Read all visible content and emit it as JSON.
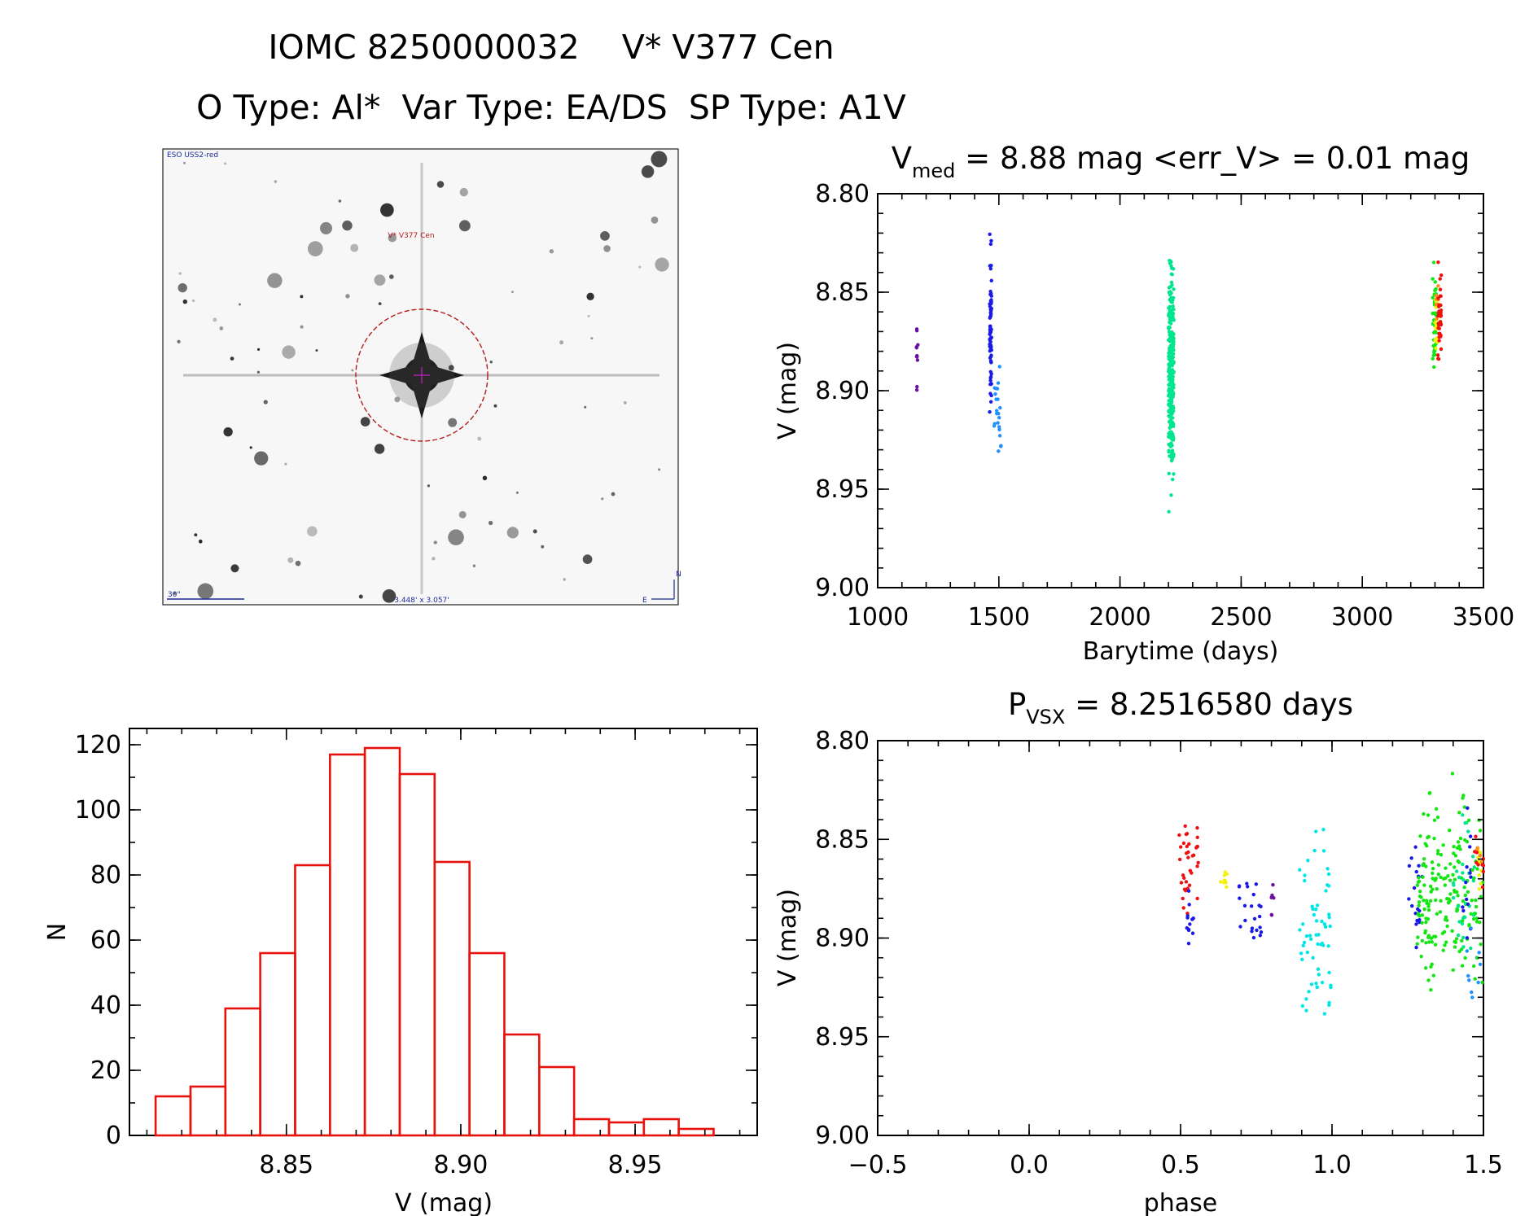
{
  "header": {
    "title": "IOMC 8250000032    V* V377 Cen",
    "subtitle": "O Type: Al*  Var Type: EA/DS  SP Type: A1V"
  },
  "finder_chart": {
    "survey_label": "ESO USS2-red",
    "target_label": "V* V377 Cen",
    "scale_label": "30\"",
    "fov_label": "3.448' x 3.057'",
    "compass_n": "N",
    "compass_e": "E"
  },
  "colors": {
    "histogram": "#e8120c",
    "purple": "#6a0fa0",
    "blue": "#1a1ae6",
    "azure": "#1e90ff",
    "green": "#14e614",
    "seagreen": "#00e68c",
    "cyan": "#00e6e6",
    "yellow": "#f2f20a",
    "orange": "#ff8c1a",
    "red": "#f01010"
  },
  "chart_data": [
    {
      "id": "histogram",
      "type": "bar",
      "xlabel": "V (mag)",
      "ylabel": "N",
      "xlim": [
        8.805,
        8.985
      ],
      "ylim": [
        0,
        125
      ],
      "xticks": [
        8.85,
        8.9,
        8.95
      ],
      "yticks": [
        0,
        20,
        40,
        60,
        80,
        100,
        120
      ],
      "bin_edges": [
        8.8125,
        8.8225,
        8.8325,
        8.8425,
        8.8525,
        8.8625,
        8.8725,
        8.8825,
        8.8925,
        8.9025,
        8.9125,
        8.9225,
        8.9325,
        8.9425,
        8.9525,
        8.9625,
        8.9725
      ],
      "values": [
        12,
        15,
        39,
        56,
        83,
        117,
        119,
        111,
        84,
        56,
        31,
        21,
        5,
        4,
        5,
        2
      ]
    },
    {
      "id": "light-curve",
      "type": "scatter",
      "title_main": "V",
      "title_sub": "med",
      "title_rest": " = 8.88 mag <err_V> = 0.01 mag",
      "xlabel": "Barytime (days)",
      "ylabel": "V (mag)",
      "xlim": [
        1000,
        3500
      ],
      "ylim": [
        8.8,
        9.0
      ],
      "y_inverted": true,
      "xticks": [
        1000,
        1500,
        2000,
        2500,
        3000,
        3500
      ],
      "yticks": [
        8.8,
        8.85,
        8.9,
        8.95,
        9.0
      ],
      "groups": [
        {
          "color": "purple",
          "xmin": 1160,
          "xmax": 1166,
          "ymin": 8.857,
          "ymax": 8.907,
          "n": 11
        },
        {
          "color": "blue",
          "xmin": 1462,
          "xmax": 1470,
          "ymin": 8.815,
          "ymax": 8.925,
          "n": 70
        },
        {
          "color": "azure",
          "xmin": 1480,
          "xmax": 1510,
          "ymin": 8.875,
          "ymax": 8.942,
          "n": 22
        },
        {
          "color": "seagreen",
          "xmin": 2200,
          "xmax": 2222,
          "ymin": 8.815,
          "ymax": 8.965,
          "n": 300
        },
        {
          "color": "green",
          "xmin": 3290,
          "xmax": 3305,
          "ymin": 8.825,
          "ymax": 8.905,
          "n": 40
        },
        {
          "color": "yellow",
          "xmin": 3300,
          "xmax": 3312,
          "ymin": 8.84,
          "ymax": 8.89,
          "n": 20
        },
        {
          "color": "orange",
          "xmin": 3305,
          "xmax": 3315,
          "ymin": 8.835,
          "ymax": 8.87,
          "n": 8
        },
        {
          "color": "red",
          "xmin": 3312,
          "xmax": 3326,
          "ymin": 8.828,
          "ymax": 8.895,
          "n": 35
        }
      ]
    },
    {
      "id": "phase-curve",
      "type": "scatter",
      "title_main": "P",
      "title_sub": "VSX",
      "title_rest": " = 8.2516580 days",
      "xlabel": "phase",
      "ylabel": "V (mag)",
      "xlim": [
        -0.5,
        1.5
      ],
      "ylim": [
        8.8,
        9.0
      ],
      "y_inverted": true,
      "xticks": [
        -0.5,
        0.0,
        0.5,
        1.0,
        1.5
      ],
      "yticks": [
        8.8,
        8.85,
        8.9,
        8.95,
        9.0
      ],
      "groups": [
        {
          "color": "red",
          "xmin": 0.49,
          "xmax": 0.56,
          "ymin": 8.828,
          "ymax": 8.895,
          "n": 35
        },
        {
          "color": "yellow",
          "xmin": 0.63,
          "xmax": 0.655,
          "ymin": 8.858,
          "ymax": 8.88,
          "n": 10
        },
        {
          "color": "purple",
          "xmin": 0.8,
          "xmax": 0.812,
          "ymin": 8.855,
          "ymax": 8.905,
          "n": 6
        },
        {
          "color": "blue",
          "xmin": 0.69,
          "xmax": 0.77,
          "ymin": 8.86,
          "ymax": 8.912,
          "n": 22
        },
        {
          "color": "blue",
          "xmin": 0.52,
          "xmax": 0.545,
          "ymin": 8.87,
          "ymax": 8.92,
          "n": 12
        },
        {
          "color": "cyan",
          "xmin": 0.89,
          "xmax": 1.0,
          "ymin": 8.836,
          "ymax": 8.96,
          "n": 60
        },
        {
          "color": "blue",
          "xmin": 1.25,
          "xmax": 1.3,
          "ymin": 8.845,
          "ymax": 8.925,
          "n": 18
        },
        {
          "color": "green",
          "xmin": 1.28,
          "xmax": 1.45,
          "ymin": 8.815,
          "ymax": 8.94,
          "n": 160
        },
        {
          "color": "seagreen",
          "xmin": 1.4,
          "xmax": 1.47,
          "ymin": 8.82,
          "ymax": 8.935,
          "n": 30
        },
        {
          "color": "blue",
          "xmin": 1.43,
          "xmax": 1.46,
          "ymin": 8.815,
          "ymax": 8.93,
          "n": 14
        },
        {
          "color": "azure",
          "xmin": 1.44,
          "xmax": 1.49,
          "ymin": 8.88,
          "ymax": 8.942,
          "n": 10
        },
        {
          "color": "green",
          "xmin": 1.45,
          "xmax": 1.5,
          "ymin": 8.825,
          "ymax": 8.95,
          "n": 25
        },
        {
          "color": "yellow",
          "xmin": 1.48,
          "xmax": 1.5,
          "ymin": 8.845,
          "ymax": 8.88,
          "n": 10
        },
        {
          "color": "orange",
          "xmin": 1.475,
          "xmax": 1.5,
          "ymin": 8.84,
          "ymax": 8.87,
          "n": 6
        },
        {
          "color": "red",
          "xmin": 1.47,
          "xmax": 1.5,
          "ymin": 8.835,
          "ymax": 8.89,
          "n": 10
        }
      ]
    }
  ]
}
